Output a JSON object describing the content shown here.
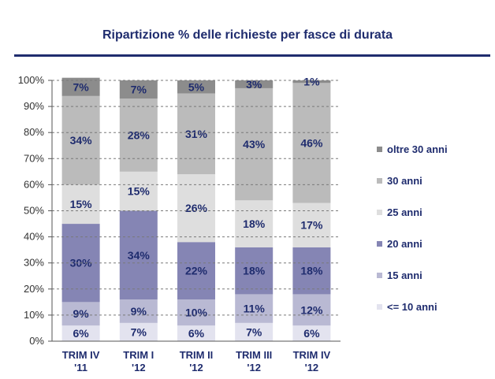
{
  "title": "Ripartizione % delle richieste per fasce di durata",
  "colors": {
    "title": "#1f2c6e",
    "labels": "#1f2c6e",
    "axis": "#555555",
    "grid": "#7a7a7a",
    "series": [
      "#e3e3ef",
      "#b9b9d3",
      "#8585b4",
      "#dedede",
      "#bbbbbb",
      "#8c8c8c"
    ]
  },
  "chart_data": {
    "type": "bar",
    "stacked": true,
    "categories": [
      [
        "TRIM IV",
        "'11"
      ],
      [
        "TRIM I",
        "'12"
      ],
      [
        "TRIM II",
        "'12"
      ],
      [
        "TRIM III",
        "'12"
      ],
      [
        "TRIM IV",
        "'12"
      ]
    ],
    "series": [
      {
        "name": "<= 10 anni",
        "values": [
          6,
          7,
          6,
          7,
          6
        ],
        "labels": [
          "6%",
          "7%",
          "6%",
          "7%",
          "6%"
        ]
      },
      {
        "name": "15 anni",
        "values": [
          9,
          9,
          10,
          11,
          12
        ],
        "labels": [
          "9%",
          "9%",
          "10%",
          "11%",
          "12%"
        ]
      },
      {
        "name": "20 anni",
        "values": [
          30,
          34,
          22,
          18,
          18
        ],
        "labels": [
          "30%",
          "34%",
          "22%",
          "18%",
          "18%"
        ]
      },
      {
        "name": "25 anni",
        "values": [
          15,
          15,
          26,
          18,
          17
        ],
        "labels": [
          "15%",
          "15%",
          "26%",
          "18%",
          "17%"
        ]
      },
      {
        "name": "30 anni",
        "values": [
          34,
          28,
          31,
          43,
          46
        ],
        "labels": [
          "34%",
          "28%",
          "31%",
          "43%",
          "46%"
        ]
      },
      {
        "name": "oltre 30 anni",
        "values": [
          7,
          7,
          5,
          3,
          1
        ],
        "labels": [
          "7%",
          "7%",
          "5%",
          "3%",
          "1%"
        ]
      }
    ],
    "yticks": [
      "0%",
      "10%",
      "20%",
      "30%",
      "40%",
      "50%",
      "60%",
      "70%",
      "80%",
      "90%",
      "100%"
    ],
    "ylim": [
      0,
      100
    ],
    "grid": "dashed horizontal",
    "legend_position": "right",
    "legend_order": [
      "oltre 30 anni",
      "30 anni",
      "25 anni",
      "20 anni",
      "15 anni",
      "<= 10 anni"
    ]
  }
}
